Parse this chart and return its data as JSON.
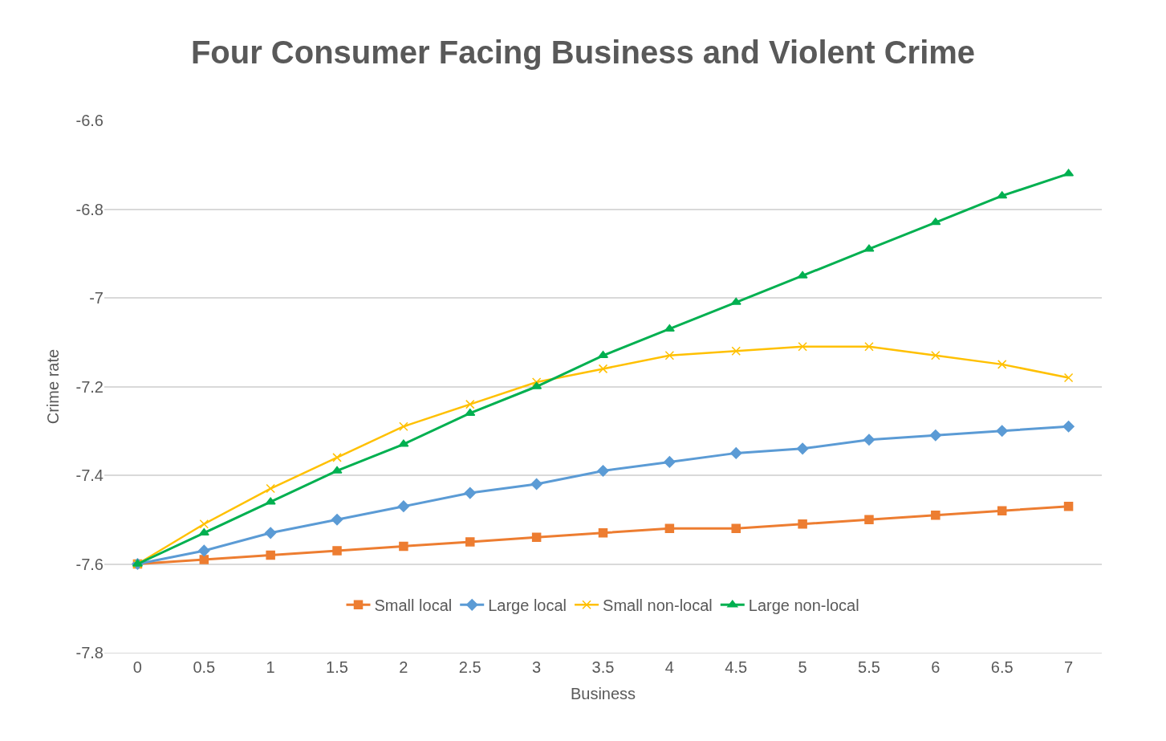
{
  "chart_data": {
    "type": "line",
    "title": "Four Consumer Facing Business and Violent Crime",
    "xlabel": "Business",
    "ylabel": "Crime rate",
    "categories": [
      "0",
      "0.5",
      "1",
      "1.5",
      "2",
      "2.5",
      "3",
      "3.5",
      "4",
      "4.5",
      "5",
      "5.5",
      "6",
      "6.5",
      "7"
    ],
    "series": [
      {
        "name": "Small local",
        "color": "#ed7d31",
        "marker": "square",
        "values": [
          -7.6,
          -7.59,
          -7.58,
          -7.57,
          -7.56,
          -7.55,
          -7.54,
          -7.53,
          -7.52,
          -7.52,
          -7.51,
          -7.5,
          -7.49,
          -7.48,
          -7.47
        ]
      },
      {
        "name": "Large local",
        "color": "#5b9bd5",
        "marker": "diamond",
        "values": [
          -7.6,
          -7.57,
          -7.53,
          -7.5,
          -7.47,
          -7.44,
          -7.42,
          -7.39,
          -7.37,
          -7.35,
          -7.34,
          -7.32,
          -7.31,
          -7.3,
          -7.29
        ]
      },
      {
        "name": "Small non-local",
        "color": "#ffc000",
        "marker": "cross",
        "values": [
          -7.6,
          -7.51,
          -7.43,
          -7.36,
          -7.29,
          -7.24,
          -7.19,
          -7.16,
          -7.13,
          -7.12,
          -7.11,
          -7.11,
          -7.13,
          -7.15,
          -7.18
        ]
      },
      {
        "name": "Large non-local",
        "color": "#00b050",
        "marker": "triangle",
        "values": [
          -7.6,
          -7.53,
          -7.46,
          -7.39,
          -7.33,
          -7.26,
          -7.2,
          -7.13,
          -7.07,
          -7.01,
          -6.95,
          -6.89,
          -6.83,
          -6.77,
          -6.72
        ]
      }
    ],
    "ylim": [
      -7.8,
      -6.6
    ],
    "yticks": [
      -7.8,
      -7.6,
      -7.4,
      -7.2,
      -7,
      -6.8,
      -6.6
    ],
    "grid": "y",
    "legend": "bottom"
  }
}
